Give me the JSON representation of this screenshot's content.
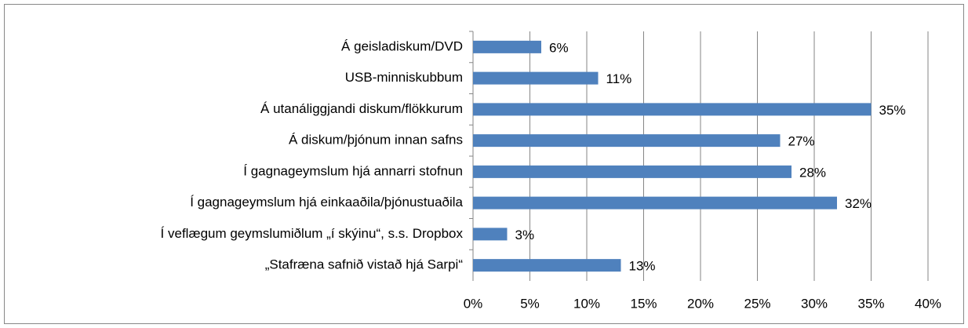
{
  "chart_data": {
    "type": "bar",
    "orientation": "horizontal",
    "categories": [
      "Á geisladiskum/DVD",
      "USB-minniskubbum",
      "Á utanáliggjandi diskum/flökkurum",
      "Á diskum/þjónum innan safns",
      "Í gagnageymslum hjá annarri stofnun",
      "Í gagnageymslum hjá einkaaðila/þjónustuaðila",
      "Í veflægum geymslumiðlum „í skýinu“, s.s. Dropbox",
      "„Stafræna safnið vistað hjá Sarpi“"
    ],
    "values": [
      6,
      11,
      35,
      27,
      28,
      32,
      3,
      13
    ],
    "value_labels": [
      "6%",
      "11%",
      "35%",
      "27%",
      "28%",
      "32%",
      "3%",
      "13%"
    ],
    "color": "#4f81bd",
    "xlim": [
      0,
      40
    ],
    "xticks": [
      {
        "value": 0,
        "label": "0%"
      },
      {
        "value": 5,
        "label": "5%"
      },
      {
        "value": 10,
        "label": "10%"
      },
      {
        "value": 15,
        "label": "15%"
      },
      {
        "value": 20,
        "label": "20%"
      },
      {
        "value": 25,
        "label": "25%"
      },
      {
        "value": 30,
        "label": "30%"
      },
      {
        "value": 35,
        "label": "35%"
      },
      {
        "value": 40,
        "label": "40%"
      }
    ],
    "grid": true
  }
}
